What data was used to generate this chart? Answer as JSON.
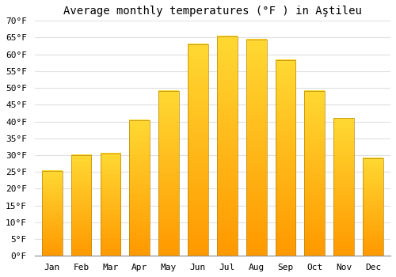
{
  "months": [
    "Jan",
    "Feb",
    "Mar",
    "Apr",
    "May",
    "Jun",
    "Jul",
    "Aug",
    "Sep",
    "Oct",
    "Nov",
    "Dec"
  ],
  "values": [
    25.3,
    30.0,
    30.5,
    40.3,
    49.1,
    63.1,
    65.3,
    64.4,
    58.3,
    49.1,
    41.0,
    29.1
  ],
  "title": "Average monthly temperatures (°F ) in Aştileu",
  "ylim": [
    0,
    70
  ],
  "yticks": [
    0,
    5,
    10,
    15,
    20,
    25,
    30,
    35,
    40,
    45,
    50,
    55,
    60,
    65,
    70
  ],
  "bar_color": "#FFA500",
  "bar_edge_color": "#B8860B",
  "background_color": "#ffffff",
  "grid_color": "#e0e0e0",
  "title_fontsize": 10,
  "tick_fontsize": 8
}
